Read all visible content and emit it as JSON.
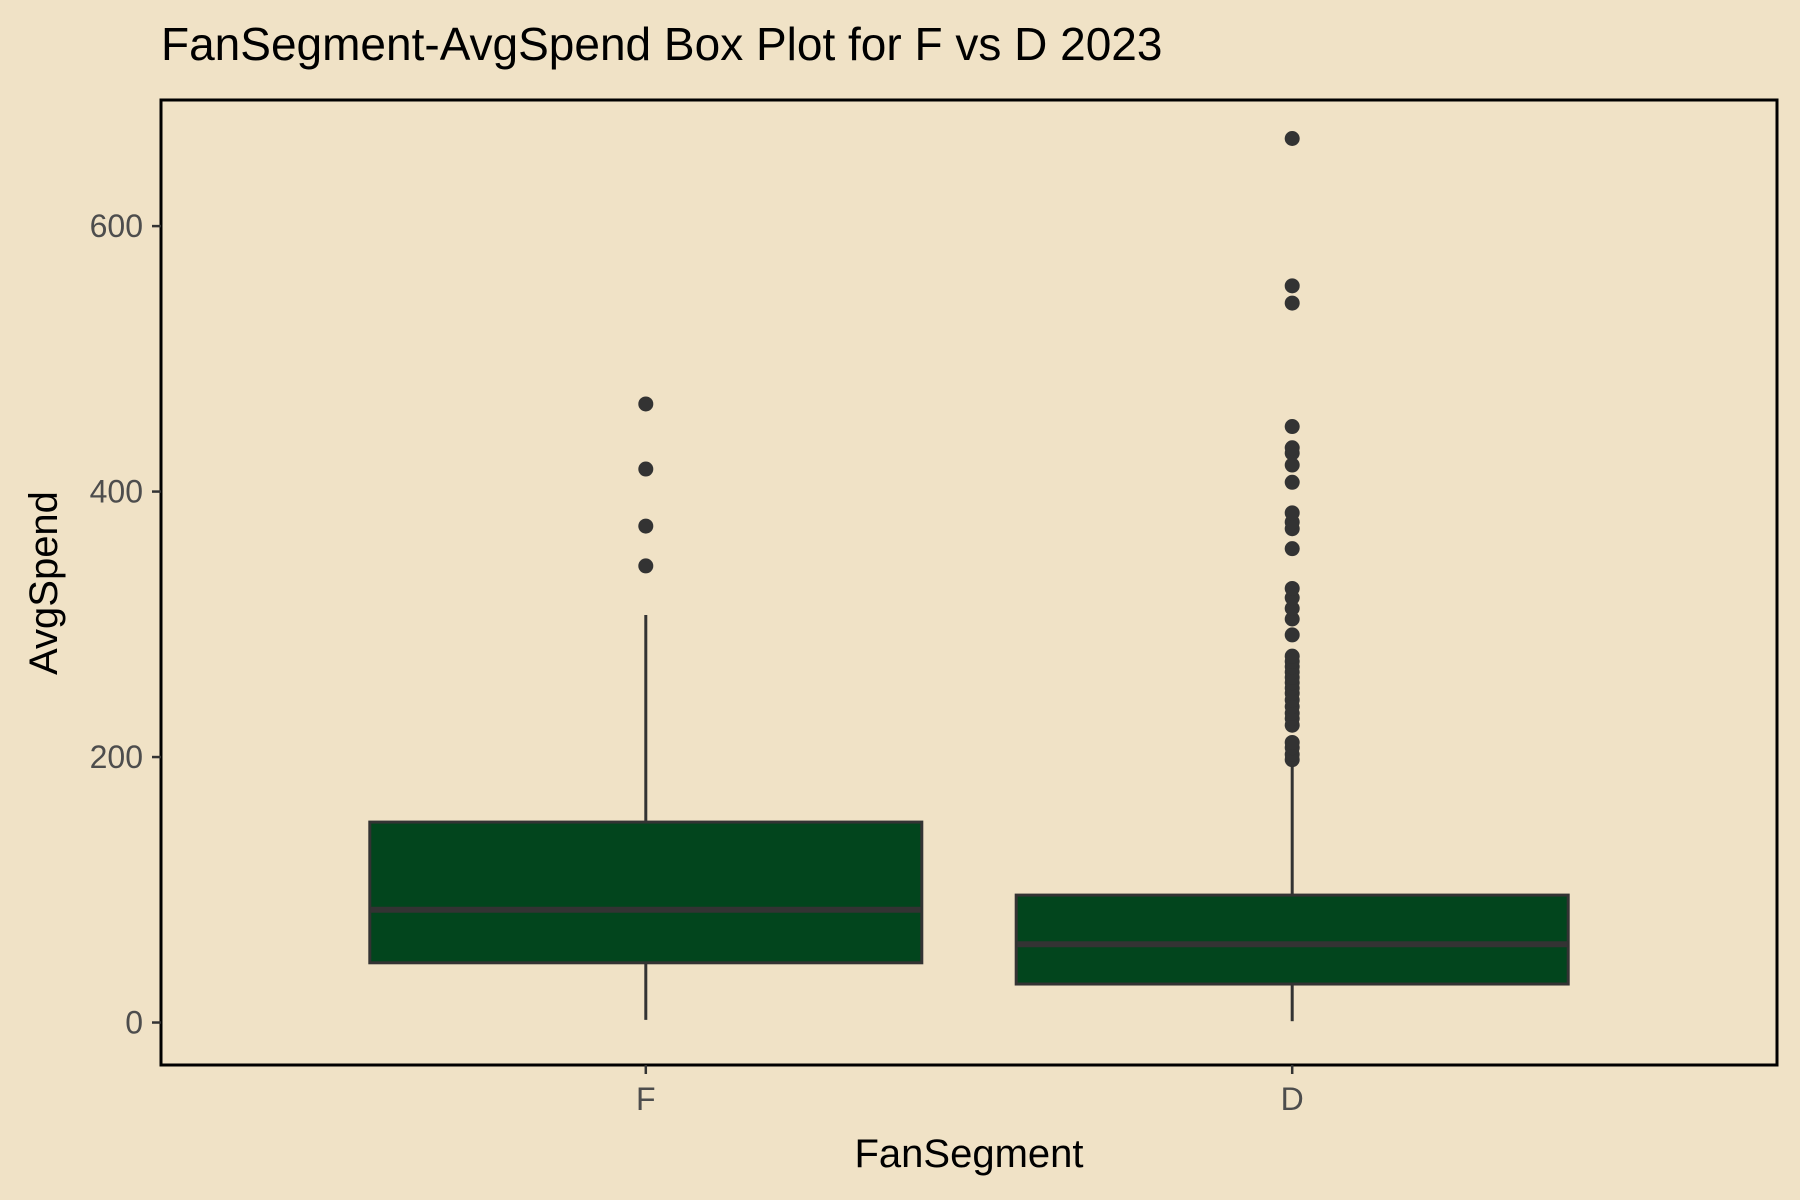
{
  "chart_data": {
    "type": "box",
    "title": "FanSegment-AvgSpend Box Plot for F vs D 2023",
    "xlabel": "FanSegment",
    "ylabel": "AvgSpend",
    "ylim": [
      -32,
      695
    ],
    "y_ticks": [
      0,
      200,
      400,
      600
    ],
    "y_tick_labels": [
      "0",
      "200",
      "400",
      "600"
    ],
    "grid": false,
    "legend": "none",
    "categories": [
      "F",
      "D"
    ],
    "boxes": [
      {
        "category": "F",
        "min": 2,
        "q1": 45,
        "median": 85,
        "q3": 151,
        "max": 307,
        "outliers": [
          344,
          374,
          417,
          466
        ]
      },
      {
        "category": "D",
        "min": 1,
        "q1": 29,
        "median": 59,
        "q3": 96,
        "max": 195,
        "outliers": [
          198,
          202,
          207,
          211,
          224,
          229,
          233,
          238,
          243,
          248,
          252,
          256,
          260,
          264,
          268,
          272,
          276,
          292,
          304,
          312,
          320,
          327,
          357,
          372,
          377,
          384,
          407,
          420,
          429,
          433,
          449,
          542,
          555,
          666
        ]
      }
    ],
    "colors": {
      "box_fill": "#02451D",
      "line": "#333333",
      "panel_border": "#000000",
      "background": "#F0E2C6"
    }
  }
}
